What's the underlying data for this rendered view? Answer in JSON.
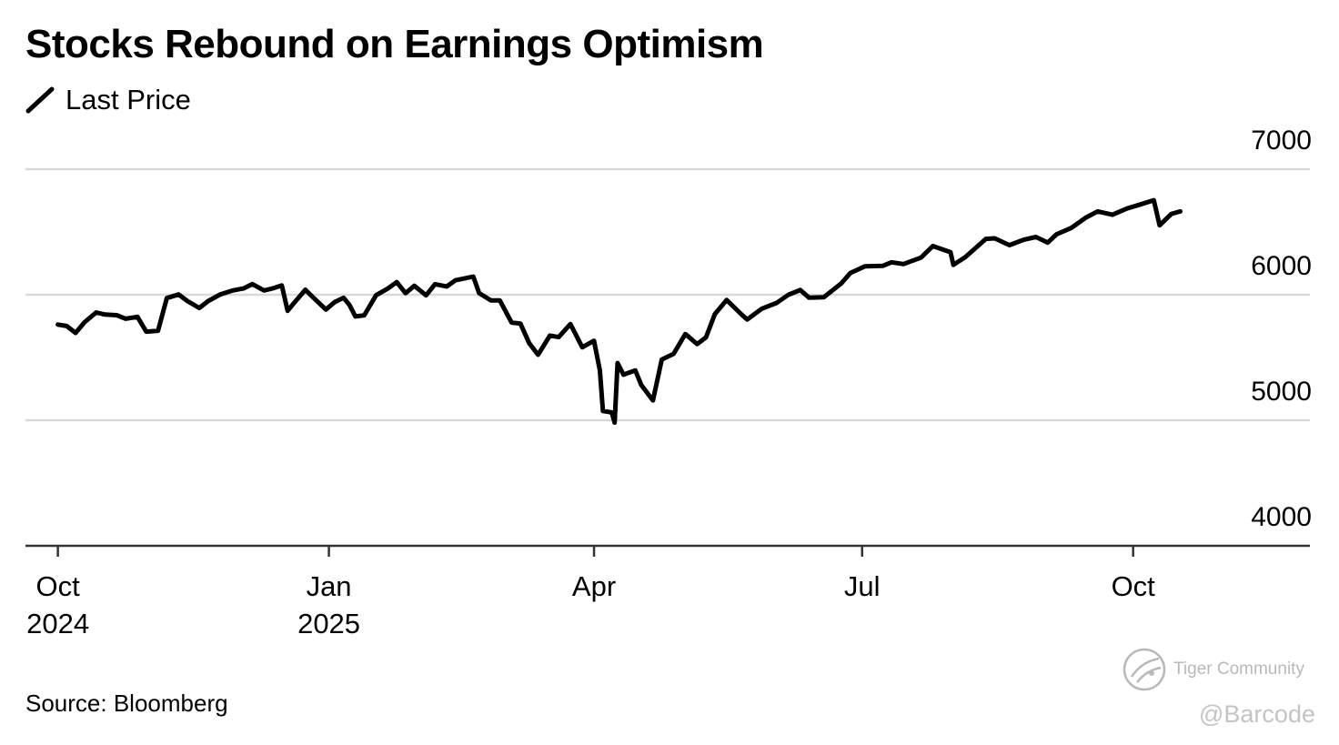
{
  "chart_data": {
    "type": "line",
    "title": "Stocks Rebound on Earnings Optimism",
    "legend": [
      "Last Price"
    ],
    "source": "Source: Bloomberg",
    "xlabel": "",
    "ylabel": "",
    "ylim": [
      4000,
      7000
    ],
    "yticks": [
      4000,
      5000,
      6000,
      7000
    ],
    "grid": true,
    "legend_position": "top-left",
    "xlim": [
      "2024-09-20",
      "2025-11-30"
    ],
    "xticks": [
      {
        "date": "2024-10-01",
        "line1": "Oct",
        "line2": "2024"
      },
      {
        "date": "2025-01-01",
        "line1": "Jan",
        "line2": "2025"
      },
      {
        "date": "2025-04-01",
        "line1": "Apr",
        "line2": ""
      },
      {
        "date": "2025-07-01",
        "line1": "Jul",
        "line2": ""
      },
      {
        "date": "2025-10-01",
        "line1": "Oct",
        "line2": ""
      }
    ],
    "series": [
      {
        "name": "Last Price",
        "color": "#000000",
        "x": [
          "2024-10-01",
          "2024-10-04",
          "2024-10-07",
          "2024-10-10",
          "2024-10-14",
          "2024-10-17",
          "2024-10-21",
          "2024-10-24",
          "2024-10-28",
          "2024-10-31",
          "2024-11-04",
          "2024-11-07",
          "2024-11-11",
          "2024-11-14",
          "2024-11-18",
          "2024-11-21",
          "2024-11-25",
          "2024-11-29",
          "2024-12-03",
          "2024-12-06",
          "2024-12-10",
          "2024-12-13",
          "2024-12-16",
          "2024-12-18",
          "2024-12-20",
          "2024-12-24",
          "2024-12-27",
          "2024-12-31",
          "2025-01-03",
          "2025-01-06",
          "2025-01-08",
          "2025-01-10",
          "2025-01-13",
          "2025-01-17",
          "2025-01-21",
          "2025-01-24",
          "2025-01-27",
          "2025-01-30",
          "2025-02-03",
          "2025-02-06",
          "2025-02-10",
          "2025-02-13",
          "2025-02-19",
          "2025-02-21",
          "2025-02-25",
          "2025-02-28",
          "2025-03-04",
          "2025-03-07",
          "2025-03-10",
          "2025-03-13",
          "2025-03-17",
          "2025-03-20",
          "2025-03-24",
          "2025-03-28",
          "2025-04-01",
          "2025-04-03",
          "2025-04-04",
          "2025-04-07",
          "2025-04-08",
          "2025-04-09",
          "2025-04-11",
          "2025-04-15",
          "2025-04-17",
          "2025-04-21",
          "2025-04-24",
          "2025-04-28",
          "2025-05-02",
          "2025-05-06",
          "2025-05-09",
          "2025-05-12",
          "2025-05-16",
          "2025-05-21",
          "2025-05-23",
          "2025-05-28",
          "2025-06-02",
          "2025-06-06",
          "2025-06-10",
          "2025-06-13",
          "2025-06-18",
          "2025-06-24",
          "2025-06-27",
          "2025-07-02",
          "2025-07-08",
          "2025-07-11",
          "2025-07-15",
          "2025-07-21",
          "2025-07-25",
          "2025-07-31",
          "2025-08-01",
          "2025-08-05",
          "2025-08-12",
          "2025-08-15",
          "2025-08-20",
          "2025-08-25",
          "2025-08-29",
          "2025-09-02",
          "2025-09-05",
          "2025-09-10",
          "2025-09-15",
          "2025-09-19",
          "2025-09-24",
          "2025-09-29",
          "2025-10-03",
          "2025-10-08",
          "2025-10-10",
          "2025-10-14",
          "2025-10-17"
        ],
        "values": [
          5762,
          5751,
          5696,
          5780,
          5859,
          5842,
          5837,
          5809,
          5824,
          5706,
          5713,
          5973,
          6002,
          5949,
          5894,
          5949,
          6001,
          6032,
          6050,
          6085,
          6034,
          6051,
          6074,
          5872,
          5930,
          6040,
          5970,
          5882,
          5942,
          5975,
          5918,
          5827,
          5836,
          5996,
          6049,
          6101,
          6012,
          6071,
          5995,
          6084,
          6066,
          6115,
          6144,
          6013,
          5955,
          5955,
          5778,
          5770,
          5614,
          5522,
          5675,
          5662,
          5767,
          5581,
          5633,
          5396,
          5074,
          5062,
          4982,
          5456,
          5363,
          5397,
          5282,
          5158,
          5484,
          5529,
          5687,
          5607,
          5660,
          5845,
          5958,
          5844,
          5802,
          5889,
          5935,
          6000,
          6038,
          5977,
          5980,
          6092,
          6173,
          6227,
          6230,
          6259,
          6244,
          6296,
          6388,
          6339,
          6238,
          6299,
          6445,
          6449,
          6395,
          6439,
          6460,
          6415,
          6481,
          6532,
          6615,
          6664,
          6637,
          6688,
          6716,
          6753,
          6553,
          6644,
          6664
        ]
      }
    ]
  },
  "watermark": {
    "brand": "Tiger Community",
    "handle": "@Barcode"
  }
}
